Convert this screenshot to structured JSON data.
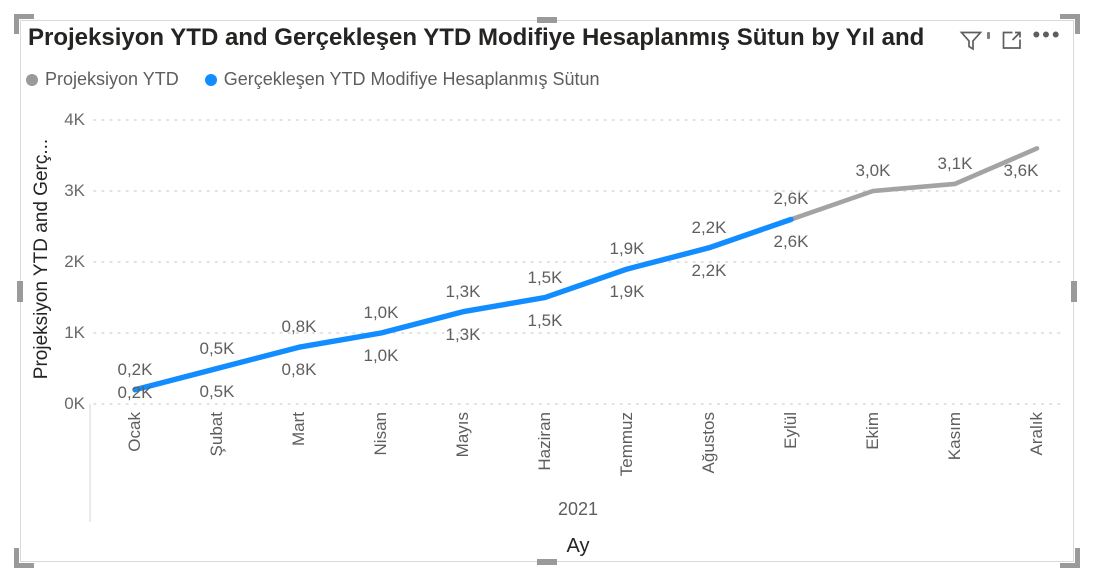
{
  "visual": {
    "title": "Projeksiyon YTD and Gerçekleşen YTD Modifiye Hesaplanmış Sütun by Yıl and",
    "toolbar": {
      "filter": "filter",
      "focus_mode": "focus mode",
      "more_options": "more options"
    }
  },
  "legend": {
    "items": [
      {
        "label": "Projeksiyon YTD",
        "color": "#9a9a9a"
      },
      {
        "label": "Gerçekleşen YTD Modifiye Hesaplanmış Sütun",
        "color": "#118DFF"
      }
    ]
  },
  "chart_data": {
    "type": "line",
    "title": "Projeksiyon YTD and Gerçekleşen YTD Modifiye Hesaplanmış Sütun by Yıl and",
    "x": [
      "Ocak",
      "Şubat",
      "Mart",
      "Nisan",
      "Mayıs",
      "Haziran",
      "Temmuz",
      "Ağustos",
      "Eylül",
      "Ekim",
      "Kasım",
      "Aralık"
    ],
    "x_group_label": "2021",
    "xlabel": "Ay",
    "ylabel": "Projeksiyon YTD and Gerç...",
    "y_ticks": [
      "0K",
      "1K",
      "2K",
      "3K",
      "4K"
    ],
    "ylim": [
      0,
      4000
    ],
    "grid": "horizontal-dotted",
    "legend_position": "top-left",
    "series": [
      {
        "name": "Projeksiyon YTD",
        "color": "#a3a3a3",
        "values": [
          200,
          500,
          800,
          1000,
          1300,
          1500,
          1900,
          2200,
          2600,
          3000,
          3100,
          3600
        ]
      },
      {
        "name": "Gerçekleşen YTD Modifiye Hesaplanmış Sütun",
        "color": "#118DFF",
        "values": [
          200,
          500,
          800,
          1000,
          1300,
          1500,
          1900,
          2200,
          2600,
          null,
          null,
          null
        ]
      }
    ],
    "data_labels": [
      {
        "above": "0,2K",
        "below": "0,2K"
      },
      {
        "above": "0,5K",
        "below": "0,5K"
      },
      {
        "above": "0,8K",
        "below": "0,8K"
      },
      {
        "above": "1,0K",
        "below": "1,0K"
      },
      {
        "above": "1,3K",
        "below": "1,3K"
      },
      {
        "above": "1,5K",
        "below": "1,5K"
      },
      {
        "above": "1,9K",
        "below": "1,9K"
      },
      {
        "above": "2,2K",
        "below": "2,2K"
      },
      {
        "above": "2,6K",
        "below": "2,6K"
      },
      {
        "above": "3,0K"
      },
      {
        "above": "3,1K"
      },
      {
        "below": "3,6K"
      }
    ]
  }
}
